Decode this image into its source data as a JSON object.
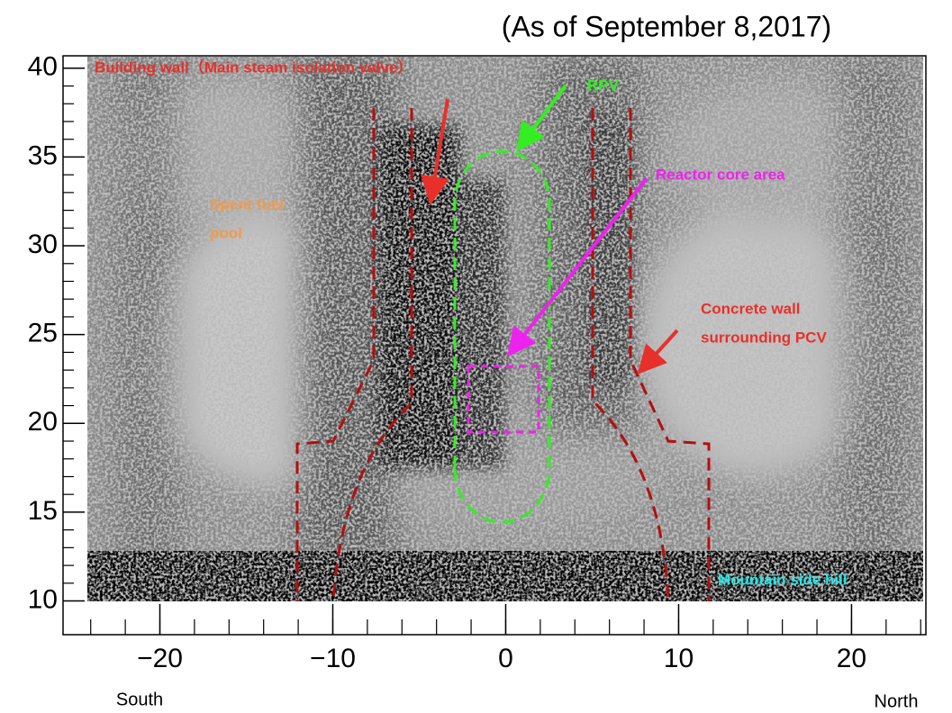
{
  "chart_data": {
    "type": "image",
    "subtitle": "(As of September 8,2017)",
    "xlim": [
      -25.6,
      24.3
    ],
    "ylim": [
      8.1,
      40.7
    ],
    "xticks": [
      {
        "value": -20,
        "label": "−20"
      },
      {
        "value": -10,
        "label": "−10"
      },
      0,
      10,
      20
    ],
    "yticks": [
      10,
      15,
      20,
      25,
      30,
      35,
      40
    ],
    "x_direction_labels": [
      "South",
      "North"
    ],
    "annotations": [
      {
        "lines": [
          "Building wall（Main steam isolation valve）"
        ],
        "color": "#e8302a"
      },
      {
        "lines": [
          "RPV"
        ],
        "color": "#33ee22"
      },
      {
        "lines": [
          "Reactor core area"
        ],
        "color": "#ee22ee"
      },
      {
        "lines": [
          "Spent fuel",
          "pool"
        ],
        "color": "#f29a4a"
      },
      {
        "lines": [
          "Concrete wall",
          "surrounding PCV"
        ],
        "color": "#e8302a"
      },
      {
        "lines": [
          "Mountain side hill"
        ],
        "color": "#22e6e6"
      }
    ]
  }
}
